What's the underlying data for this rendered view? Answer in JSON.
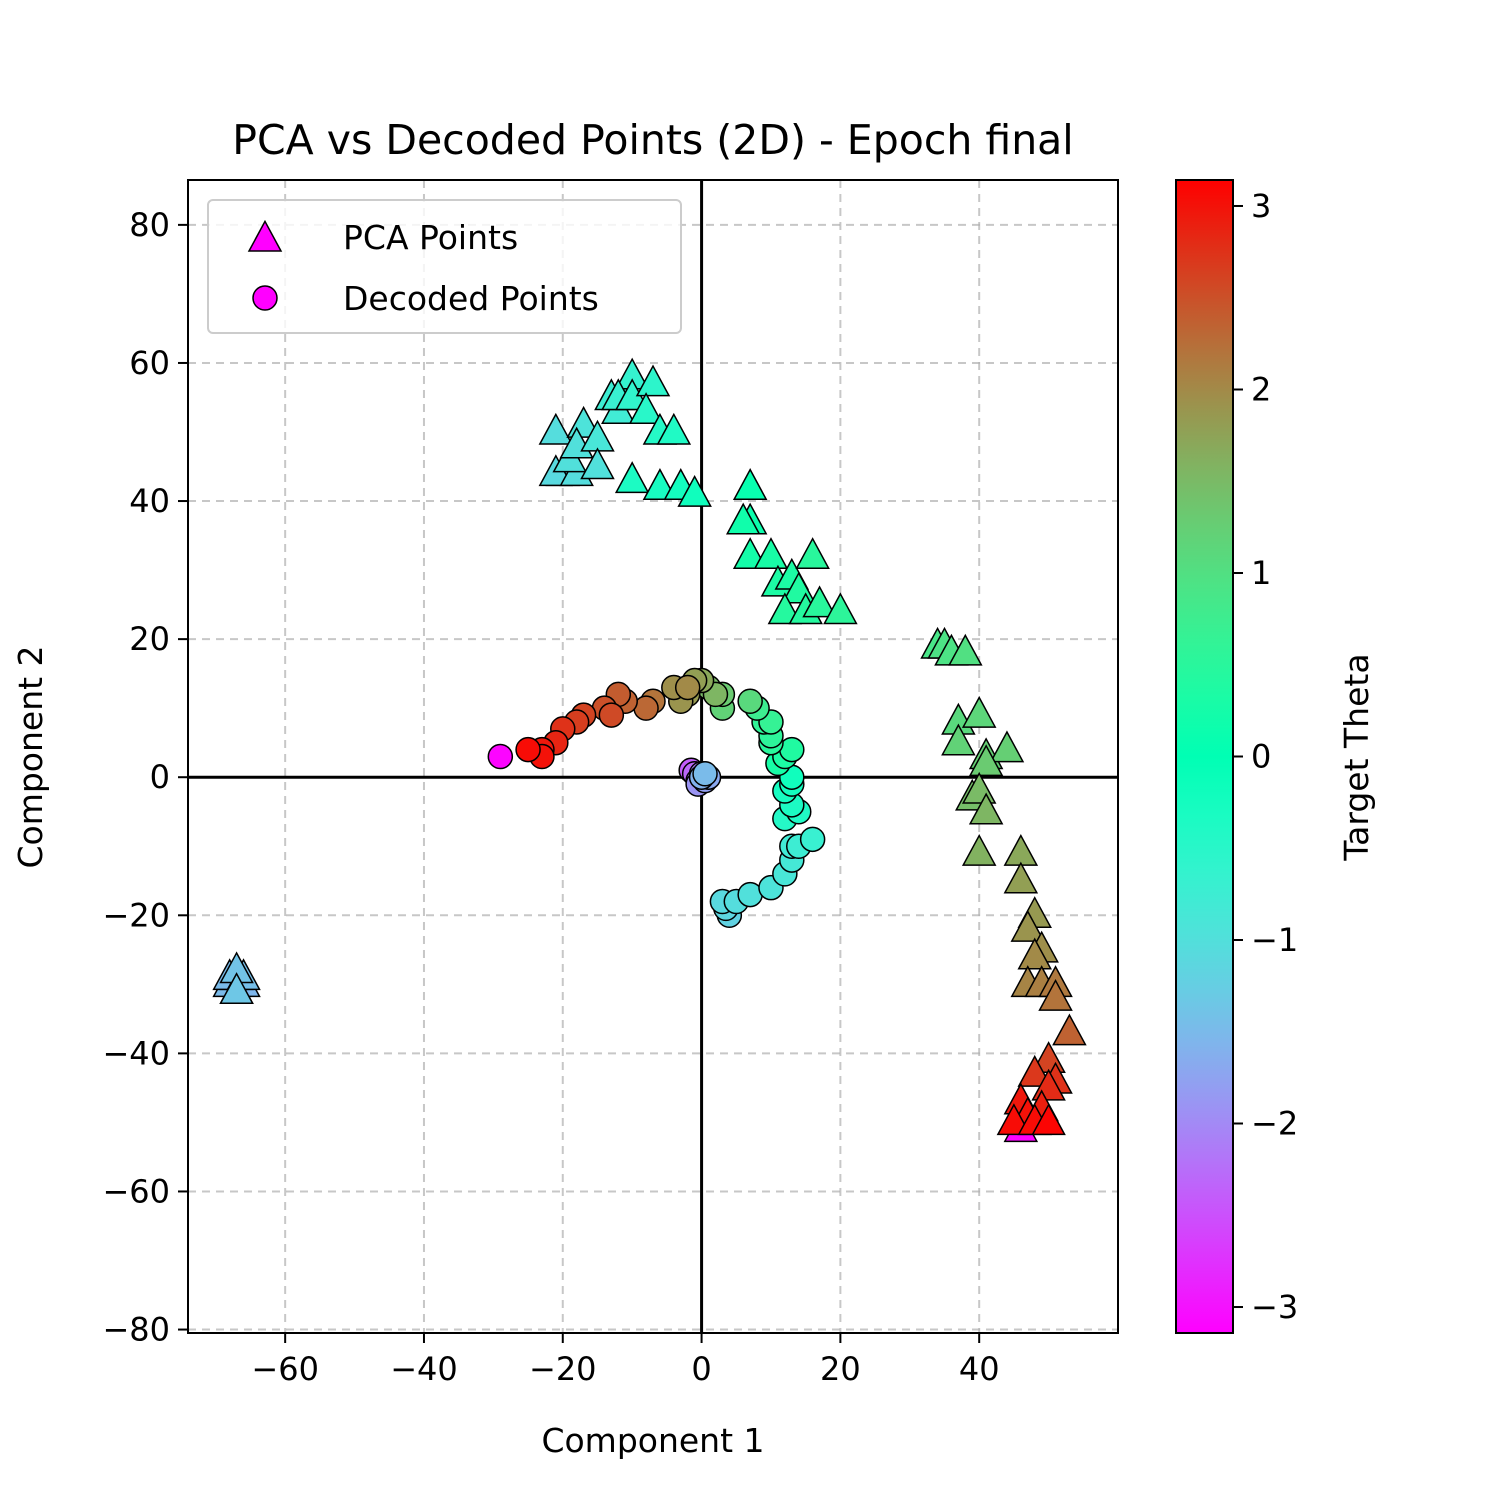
{
  "chart_data": {
    "type": "scatter",
    "title": "PCA vs Decoded Points (2D) - Epoch final",
    "xlabel": "Component 1",
    "ylabel": "Component 2",
    "xlim": [
      -74,
      60
    ],
    "ylim": [
      -80.5,
      86.5
    ],
    "x_ticks": [
      -60,
      -40,
      -20,
      0,
      20,
      40
    ],
    "y_ticks": [
      -80,
      -60,
      -40,
      -20,
      0,
      20,
      40,
      60,
      80
    ],
    "grid": true,
    "legend_position": "top-left",
    "colorbar": {
      "label": "Target Theta",
      "range": [
        -3.14159,
        3.14159
      ],
      "ticks": [
        -3,
        -2,
        -1,
        0,
        1,
        2,
        3
      ],
      "colormap": "rainbow"
    },
    "series": [
      {
        "name": "PCA Points",
        "marker": "triangle",
        "points": [
          [
            46,
            -51,
            -3.1
          ],
          [
            -67,
            -31,
            -1.45
          ],
          [
            -68,
            -30,
            -1.5
          ],
          [
            -66,
            -30,
            -1.55
          ],
          [
            -67,
            -29,
            -1.6
          ],
          [
            -68,
            -29,
            -1.5
          ],
          [
            -66,
            -29,
            -1.45
          ],
          [
            -67,
            -28,
            -1.4
          ],
          [
            -67,
            -31,
            -1.35
          ],
          [
            -20,
            44,
            -1.15
          ],
          [
            -21,
            44,
            -1.1
          ],
          [
            -18,
            44,
            -1.05
          ],
          [
            -19,
            46,
            -1.0
          ],
          [
            -21,
            50,
            -1.05
          ],
          [
            -17,
            51,
            -0.95
          ],
          [
            -18,
            48,
            -1.0
          ],
          [
            -15,
            49,
            -0.9
          ],
          [
            -15,
            45,
            -1.0
          ],
          [
            -12,
            53,
            -0.8
          ],
          [
            -13,
            55,
            -0.75
          ],
          [
            -11,
            56,
            -0.7
          ],
          [
            -10,
            58,
            -0.65
          ],
          [
            -12,
            55,
            -0.7
          ],
          [
            -10,
            55,
            -0.6
          ],
          [
            -7,
            57,
            -0.55
          ],
          [
            -8,
            53,
            -0.5
          ],
          [
            -6,
            50,
            -0.45
          ],
          [
            -4,
            50,
            -0.4
          ],
          [
            -10,
            43,
            -0.35
          ],
          [
            -6,
            42,
            -0.3
          ],
          [
            -3,
            42,
            -0.25
          ],
          [
            -1,
            41,
            -0.2
          ],
          [
            7,
            42,
            0.1
          ],
          [
            7,
            37,
            0.15
          ],
          [
            6,
            37,
            0.2
          ],
          [
            7,
            32,
            0.25
          ],
          [
            10,
            32,
            0.3
          ],
          [
            11,
            28,
            0.35
          ],
          [
            13,
            29,
            0.35
          ],
          [
            14,
            27,
            0.4
          ],
          [
            12,
            24,
            0.45
          ],
          [
            15,
            24,
            0.45
          ],
          [
            16,
            32,
            0.5
          ],
          [
            17,
            25,
            0.5
          ],
          [
            20,
            24,
            0.55
          ],
          [
            34,
            19,
            0.9
          ],
          [
            35,
            19,
            0.95
          ],
          [
            36,
            18,
            0.95
          ],
          [
            38,
            18,
            1.0
          ],
          [
            37,
            8,
            1.1
          ],
          [
            40,
            9,
            1.15
          ],
          [
            37,
            5,
            1.2
          ],
          [
            41,
            3,
            1.25
          ],
          [
            44,
            4,
            1.25
          ],
          [
            41,
            2,
            1.3
          ],
          [
            39,
            -3,
            1.45
          ],
          [
            40,
            -2,
            1.5
          ],
          [
            41,
            -5,
            1.55
          ],
          [
            40,
            -11,
            1.6
          ],
          [
            46,
            -11,
            1.7
          ],
          [
            46,
            -15,
            1.8
          ],
          [
            48,
            -20,
            1.85
          ],
          [
            47,
            -22,
            1.9
          ],
          [
            49,
            -25,
            1.95
          ],
          [
            48,
            -26,
            2.0
          ],
          [
            47,
            -30,
            2.05
          ],
          [
            49,
            -30,
            2.1
          ],
          [
            51,
            -30,
            2.15
          ],
          [
            51,
            -32,
            2.2
          ],
          [
            53,
            -37,
            2.35
          ],
          [
            50,
            -41,
            2.6
          ],
          [
            48,
            -43,
            2.7
          ],
          [
            51,
            -44,
            2.75
          ],
          [
            50,
            -45,
            2.8
          ],
          [
            49,
            -48,
            2.9
          ],
          [
            46,
            -47,
            2.95
          ],
          [
            47,
            -49,
            3.0
          ],
          [
            45,
            -50,
            3.05
          ],
          [
            48,
            -50,
            3.05
          ],
          [
            50,
            -50,
            3.1
          ]
        ]
      },
      {
        "name": "Decoded Points",
        "marker": "circle",
        "points": [
          [
            -29,
            3,
            -3.1
          ],
          [
            -1.5,
            1,
            -2.4
          ],
          [
            -1,
            0.5,
            -2.3
          ],
          [
            -0.5,
            -0.5,
            -2.2
          ],
          [
            0,
            0.5,
            -2.1
          ],
          [
            0.3,
            0,
            -2.0
          ],
          [
            -0.5,
            -1,
            -1.9
          ],
          [
            0.5,
            -0.5,
            -1.8
          ],
          [
            1,
            0,
            -1.7
          ],
          [
            0,
            0,
            -1.6
          ],
          [
            0.5,
            0.5,
            -1.5
          ],
          [
            4,
            -20,
            -1.2
          ],
          [
            3.5,
            -19,
            -1.15
          ],
          [
            3,
            -18,
            -1.1
          ],
          [
            5,
            -18,
            -1.05
          ],
          [
            7,
            -17,
            -1.0
          ],
          [
            10,
            -16,
            -0.95
          ],
          [
            12,
            -14,
            -0.9
          ],
          [
            13,
            -12,
            -0.85
          ],
          [
            13,
            -10,
            -0.8
          ],
          [
            14,
            -10,
            -0.75
          ],
          [
            16,
            -9,
            -0.7
          ],
          [
            12,
            -6,
            -0.45
          ],
          [
            14,
            -5,
            -0.4
          ],
          [
            13,
            -4,
            -0.35
          ],
          [
            12,
            -2,
            -0.3
          ],
          [
            13,
            -1,
            -0.25
          ],
          [
            13,
            0,
            -0.2
          ],
          [
            11,
            2,
            0.3
          ],
          [
            12,
            3,
            0.35
          ],
          [
            13,
            4,
            0.4
          ],
          [
            10,
            5,
            0.5
          ],
          [
            10,
            6,
            0.55
          ],
          [
            9,
            8,
            0.6
          ],
          [
            10,
            8,
            0.65
          ],
          [
            8,
            10,
            0.75
          ],
          [
            7,
            11,
            1.1
          ],
          [
            3,
            10,
            1.2
          ],
          [
            3,
            12,
            1.3
          ],
          [
            1,
            13,
            1.5
          ],
          [
            2,
            12,
            1.55
          ],
          [
            0,
            14,
            1.7
          ],
          [
            -1,
            14,
            1.8
          ],
          [
            -2,
            12,
            1.85
          ],
          [
            -3,
            11,
            1.9
          ],
          [
            -4,
            13,
            1.95
          ],
          [
            -2,
            13,
            2.0
          ],
          [
            -7,
            11,
            2.2
          ],
          [
            -8,
            10,
            2.3
          ],
          [
            -11,
            11,
            2.35
          ],
          [
            -12,
            12,
            2.4
          ],
          [
            -14,
            10,
            2.5
          ],
          [
            -13,
            9,
            2.55
          ],
          [
            -17,
            9,
            2.6
          ],
          [
            -18,
            8,
            2.65
          ],
          [
            -20,
            7,
            2.75
          ],
          [
            -21,
            5,
            2.85
          ],
          [
            -23,
            4,
            2.95
          ],
          [
            -23,
            3,
            3.0
          ],
          [
            -25,
            4,
            3.05
          ]
        ]
      }
    ]
  }
}
